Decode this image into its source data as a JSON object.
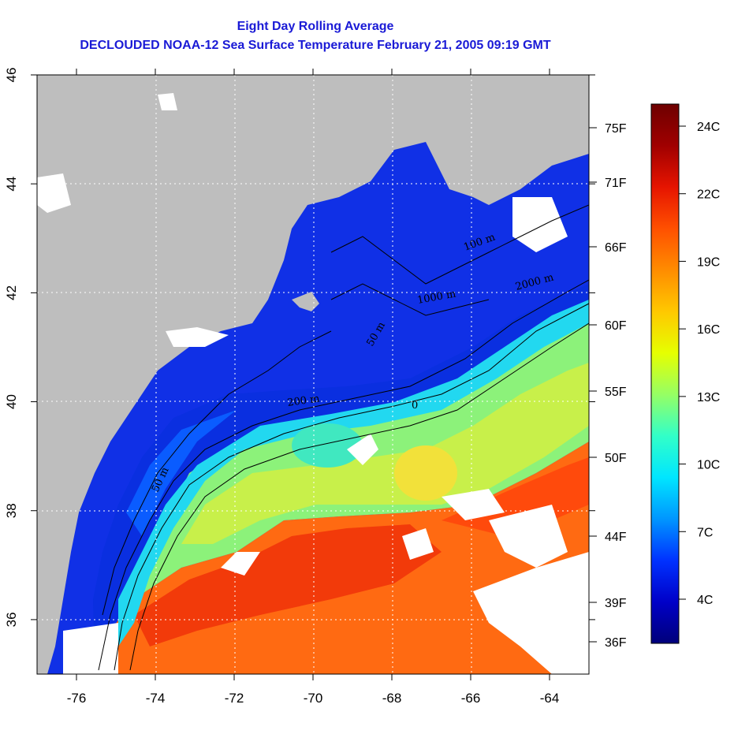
{
  "header": {
    "title_line1": "Eight Day Rolling Average",
    "title_line2": "DECLOUDED NOAA-12 Sea Surface Temperature February 21, 2005 09:19 GMT"
  },
  "map": {
    "region": "Northwest Atlantic / US Northeast coast",
    "lon_range": [
      -77,
      -63
    ],
    "lat_range": [
      35,
      46
    ],
    "lon_ticks": [
      "-76",
      "-74",
      "-72",
      "-70",
      "-68",
      "-66",
      "-64"
    ],
    "lat_ticks": [
      "36",
      "38",
      "40",
      "42",
      "44",
      "46"
    ],
    "land_color": "#bebebe",
    "no_data_color": "#ffffff",
    "grid_style": "dotted white"
  },
  "contours": [
    {
      "label": "50 m"
    },
    {
      "label": "100 m"
    },
    {
      "label": "200 m"
    },
    {
      "label": "1000 m"
    },
    {
      "label": "2000 m"
    },
    {
      "label": "50 m"
    },
    {
      "label": "0"
    }
  ],
  "colorbar": {
    "colors": [
      "#00007a",
      "#0000c8",
      "#0032ff",
      "#0096ff",
      "#00e6ff",
      "#32ffc8",
      "#96ff64",
      "#e6ff00",
      "#ffc800",
      "#ff8c00",
      "#ff5000",
      "#e61400",
      "#a00000",
      "#6e0000"
    ],
    "celsius_labels": [
      "24C",
      "22C",
      "19C",
      "16C",
      "13C",
      "10C",
      "7C",
      "4C"
    ],
    "fahrenheit_labels": [
      "75F",
      "71F",
      "66F",
      "60F",
      "55F",
      "50F",
      "44F",
      "39F",
      "36F"
    ]
  }
}
